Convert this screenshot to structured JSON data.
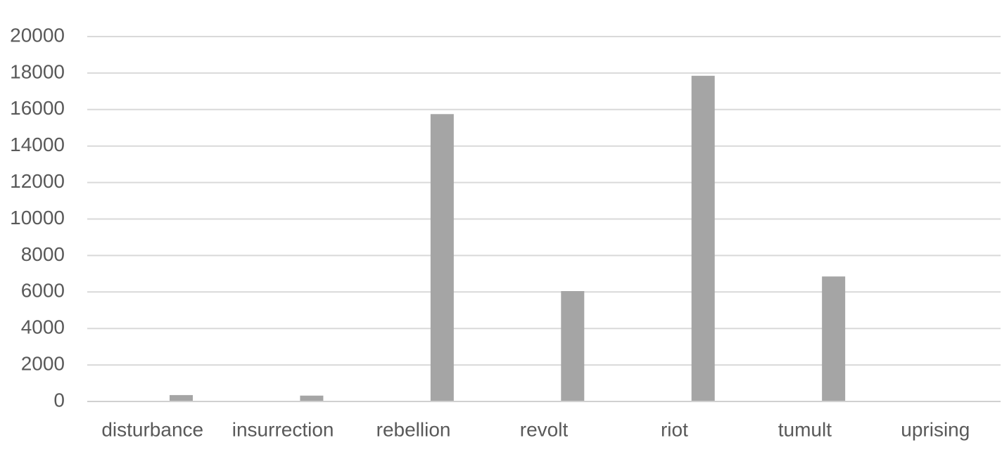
{
  "chart_data": {
    "type": "bar",
    "categories": [
      "disturbance",
      "insurrection",
      "rebellion",
      "revolt",
      "riot",
      "tumult",
      "uprising"
    ],
    "series": [
      {
        "values": [
          350,
          320,
          15750,
          6050,
          17850,
          6850,
          0
        ],
        "color": "#a5a5a5"
      }
    ],
    "ylim": [
      0,
      20000
    ],
    "yticks": [
      0,
      2000,
      4000,
      6000,
      8000,
      10000,
      12000,
      14000,
      16000,
      18000,
      20000
    ],
    "grid": true,
    "legend": "none",
    "gridline_color": "#d9d9d9",
    "tick_label_color": "#595959"
  }
}
